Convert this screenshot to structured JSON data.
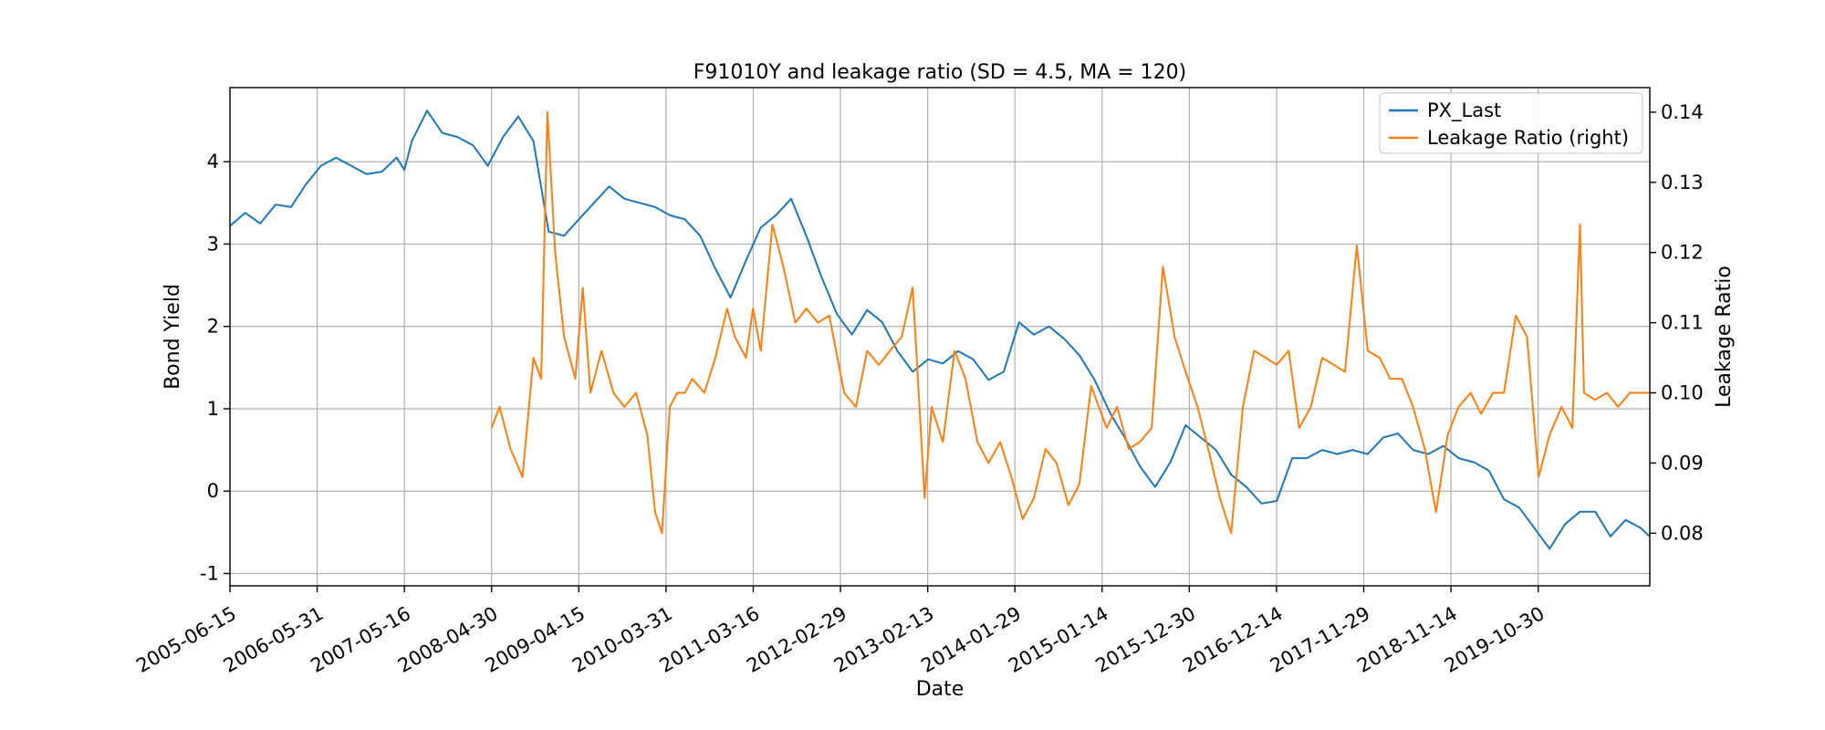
{
  "chart_data": {
    "type": "line",
    "title": "F91010Y and leakage ratio (SD = 4.5, MA = 120)",
    "xlabel": "Date",
    "ylabel": "Bond Yield",
    "y2label": "Leakage Ratio",
    "xlim": [
      "2005-06-15",
      "2021-01-20"
    ],
    "ylim": [
      -1.15,
      4.9
    ],
    "y2lim": [
      0.0725,
      0.1435
    ],
    "x_ticks": [
      "2005-06-15",
      "2006-05-31",
      "2007-05-16",
      "2008-04-30",
      "2009-04-15",
      "2010-03-31",
      "2011-03-16",
      "2012-02-29",
      "2013-02-13",
      "2014-01-29",
      "2015-01-14",
      "2015-12-30",
      "2016-12-14",
      "2017-11-29",
      "2018-11-14",
      "2019-10-30"
    ],
    "y_ticks": [
      -1,
      0,
      1,
      2,
      3,
      4
    ],
    "y2_ticks": [
      0.08,
      0.09,
      0.1,
      0.11,
      0.12,
      0.13,
      0.14
    ],
    "grid": true,
    "legend_position": "top-right",
    "colors": {
      "series1": "#1f77b4",
      "series2": "#ff7f0e"
    },
    "series": [
      {
        "name": "PX_Last",
        "axis": "left",
        "x": [
          "2005-06-15",
          "2005-08-15",
          "2005-10-15",
          "2005-12-15",
          "2006-02-15",
          "2006-04-15",
          "2006-06-15",
          "2006-08-15",
          "2006-10-15",
          "2006-12-15",
          "2007-02-15",
          "2007-04-15",
          "2007-05-16",
          "2007-06-15",
          "2007-08-15",
          "2007-10-15",
          "2007-12-15",
          "2008-02-15",
          "2008-04-15",
          "2008-06-15",
          "2008-08-15",
          "2008-10-15",
          "2008-12-15",
          "2009-02-15",
          "2009-04-15",
          "2009-06-15",
          "2009-08-15",
          "2009-10-15",
          "2009-12-15",
          "2010-02-15",
          "2010-04-15",
          "2010-06-15",
          "2010-08-15",
          "2010-10-15",
          "2010-12-15",
          "2011-02-15",
          "2011-04-15",
          "2011-06-15",
          "2011-08-15",
          "2011-10-15",
          "2011-12-15",
          "2012-02-15",
          "2012-04-15",
          "2012-06-15",
          "2012-08-15",
          "2012-10-15",
          "2012-12-15",
          "2013-02-15",
          "2013-04-15",
          "2013-06-15",
          "2013-08-15",
          "2013-10-15",
          "2013-12-15",
          "2014-02-15",
          "2014-04-15",
          "2014-06-15",
          "2014-08-15",
          "2014-10-15",
          "2014-12-15",
          "2015-02-15",
          "2015-04-15",
          "2015-06-15",
          "2015-08-15",
          "2015-10-15",
          "2015-12-15",
          "2016-02-15",
          "2016-04-15",
          "2016-06-15",
          "2016-08-15",
          "2016-10-15",
          "2016-12-15",
          "2017-02-15",
          "2017-04-15",
          "2017-06-15",
          "2017-08-15",
          "2017-10-15",
          "2017-12-15",
          "2018-02-15",
          "2018-04-15",
          "2018-06-15",
          "2018-08-15",
          "2018-10-15",
          "2018-12-15",
          "2019-02-15",
          "2019-04-15",
          "2019-06-15",
          "2019-08-15",
          "2019-10-15",
          "2019-12-15",
          "2020-02-15",
          "2020-04-15",
          "2020-06-15",
          "2020-08-15",
          "2020-10-15",
          "2020-12-15",
          "2021-01-20"
        ],
        "values": [
          3.22,
          3.38,
          3.25,
          3.48,
          3.45,
          3.72,
          3.95,
          4.05,
          3.95,
          3.85,
          3.88,
          4.05,
          3.9,
          4.25,
          4.62,
          4.35,
          4.3,
          4.2,
          3.95,
          4.3,
          4.55,
          4.25,
          3.15,
          3.1,
          3.3,
          3.5,
          3.7,
          3.55,
          3.5,
          3.45,
          3.35,
          3.3,
          3.1,
          2.7,
          2.35,
          2.8,
          3.2,
          3.35,
          3.55,
          3.1,
          2.6,
          2.15,
          1.9,
          2.2,
          2.05,
          1.7,
          1.45,
          1.6,
          1.55,
          1.7,
          1.6,
          1.35,
          1.45,
          2.05,
          1.9,
          2.0,
          1.85,
          1.65,
          1.35,
          0.95,
          0.65,
          0.3,
          0.05,
          0.35,
          0.8,
          0.65,
          0.5,
          0.2,
          0.05,
          -0.15,
          -0.12,
          0.4,
          0.4,
          0.5,
          0.45,
          0.5,
          0.45,
          0.65,
          0.7,
          0.5,
          0.45,
          0.55,
          0.4,
          0.35,
          0.25,
          -0.1,
          -0.2,
          -0.45,
          -0.7,
          -0.4,
          -0.25,
          -0.25,
          -0.55,
          -0.35,
          -0.45,
          -0.55
        ]
      },
      {
        "name": "Leakage Ratio (right)",
        "axis": "right",
        "x": [
          "2008-04-30",
          "2008-06-01",
          "2008-07-15",
          "2008-09-01",
          "2008-10-15",
          "2008-11-15",
          "2008-12-10",
          "2009-01-10",
          "2009-02-15",
          "2009-04-01",
          "2009-05-01",
          "2009-06-01",
          "2009-07-15",
          "2009-09-01",
          "2009-10-15",
          "2009-12-01",
          "2010-01-15",
          "2010-02-15",
          "2010-03-15",
          "2010-04-15",
          "2010-05-15",
          "2010-06-15",
          "2010-07-15",
          "2010-09-01",
          "2010-10-15",
          "2010-12-01",
          "2011-01-01",
          "2011-02-15",
          "2011-03-15",
          "2011-04-15",
          "2011-06-01",
          "2011-07-15",
          "2011-09-01",
          "2011-10-15",
          "2011-12-01",
          "2012-01-15",
          "2012-03-15",
          "2012-05-01",
          "2012-06-15",
          "2012-08-01",
          "2012-09-15",
          "2012-11-01",
          "2012-12-15",
          "2013-02-01",
          "2013-03-01",
          "2013-04-15",
          "2013-06-01",
          "2013-07-15",
          "2013-09-01",
          "2013-10-15",
          "2013-12-01",
          "2014-01-15",
          "2014-03-01",
          "2014-04-15",
          "2014-06-01",
          "2014-07-15",
          "2014-09-01",
          "2014-10-15",
          "2014-12-01",
          "2015-02-01",
          "2015-03-15",
          "2015-05-01",
          "2015-06-15",
          "2015-08-01",
          "2015-09-15",
          "2015-11-01",
          "2015-12-15",
          "2016-02-01",
          "2016-03-15",
          "2016-05-01",
          "2016-06-15",
          "2016-08-01",
          "2016-09-15",
          "2016-11-01",
          "2016-12-15",
          "2017-02-01",
          "2017-03-15",
          "2017-05-01",
          "2017-06-15",
          "2017-08-01",
          "2017-09-15",
          "2017-11-01",
          "2017-12-15",
          "2018-02-01",
          "2018-03-15",
          "2018-05-01",
          "2018-06-15",
          "2018-08-01",
          "2018-09-15",
          "2018-11-01",
          "2018-12-15",
          "2019-02-01",
          "2019-03-15",
          "2019-05-01",
          "2019-06-15",
          "2019-08-01",
          "2019-09-15",
          "2019-11-01",
          "2019-12-15",
          "2020-02-01",
          "2020-03-15",
          "2020-04-15",
          "2020-05-01",
          "2020-06-15",
          "2020-08-01",
          "2020-09-15",
          "2020-11-01",
          "2021-01-20"
        ],
        "values": [
          0.095,
          0.098,
          0.092,
          0.088,
          0.105,
          0.102,
          0.14,
          0.12,
          0.108,
          0.102,
          0.115,
          0.1,
          0.106,
          0.1,
          0.098,
          0.1,
          0.094,
          0.083,
          0.08,
          0.098,
          0.1,
          0.1,
          0.102,
          0.1,
          0.105,
          0.112,
          0.108,
          0.105,
          0.112,
          0.106,
          0.124,
          0.118,
          0.11,
          0.112,
          0.11,
          0.111,
          0.1,
          0.098,
          0.106,
          0.104,
          0.106,
          0.108,
          0.115,
          0.085,
          0.098,
          0.093,
          0.106,
          0.102,
          0.093,
          0.09,
          0.093,
          0.088,
          0.082,
          0.085,
          0.092,
          0.09,
          0.084,
          0.087,
          0.101,
          0.095,
          0.098,
          0.092,
          0.093,
          0.095,
          0.118,
          0.108,
          0.103,
          0.098,
          0.092,
          0.085,
          0.08,
          0.098,
          0.106,
          0.105,
          0.104,
          0.106,
          0.095,
          0.098,
          0.105,
          0.104,
          0.103,
          0.121,
          0.106,
          0.105,
          0.102,
          0.102,
          0.098,
          0.092,
          0.083,
          0.094,
          0.098,
          0.1,
          0.097,
          0.1,
          0.1,
          0.111,
          0.108,
          0.088,
          0.094,
          0.098,
          0.095,
          0.124,
          0.1,
          0.099,
          0.1,
          0.098,
          0.1,
          0.1
        ]
      }
    ]
  }
}
